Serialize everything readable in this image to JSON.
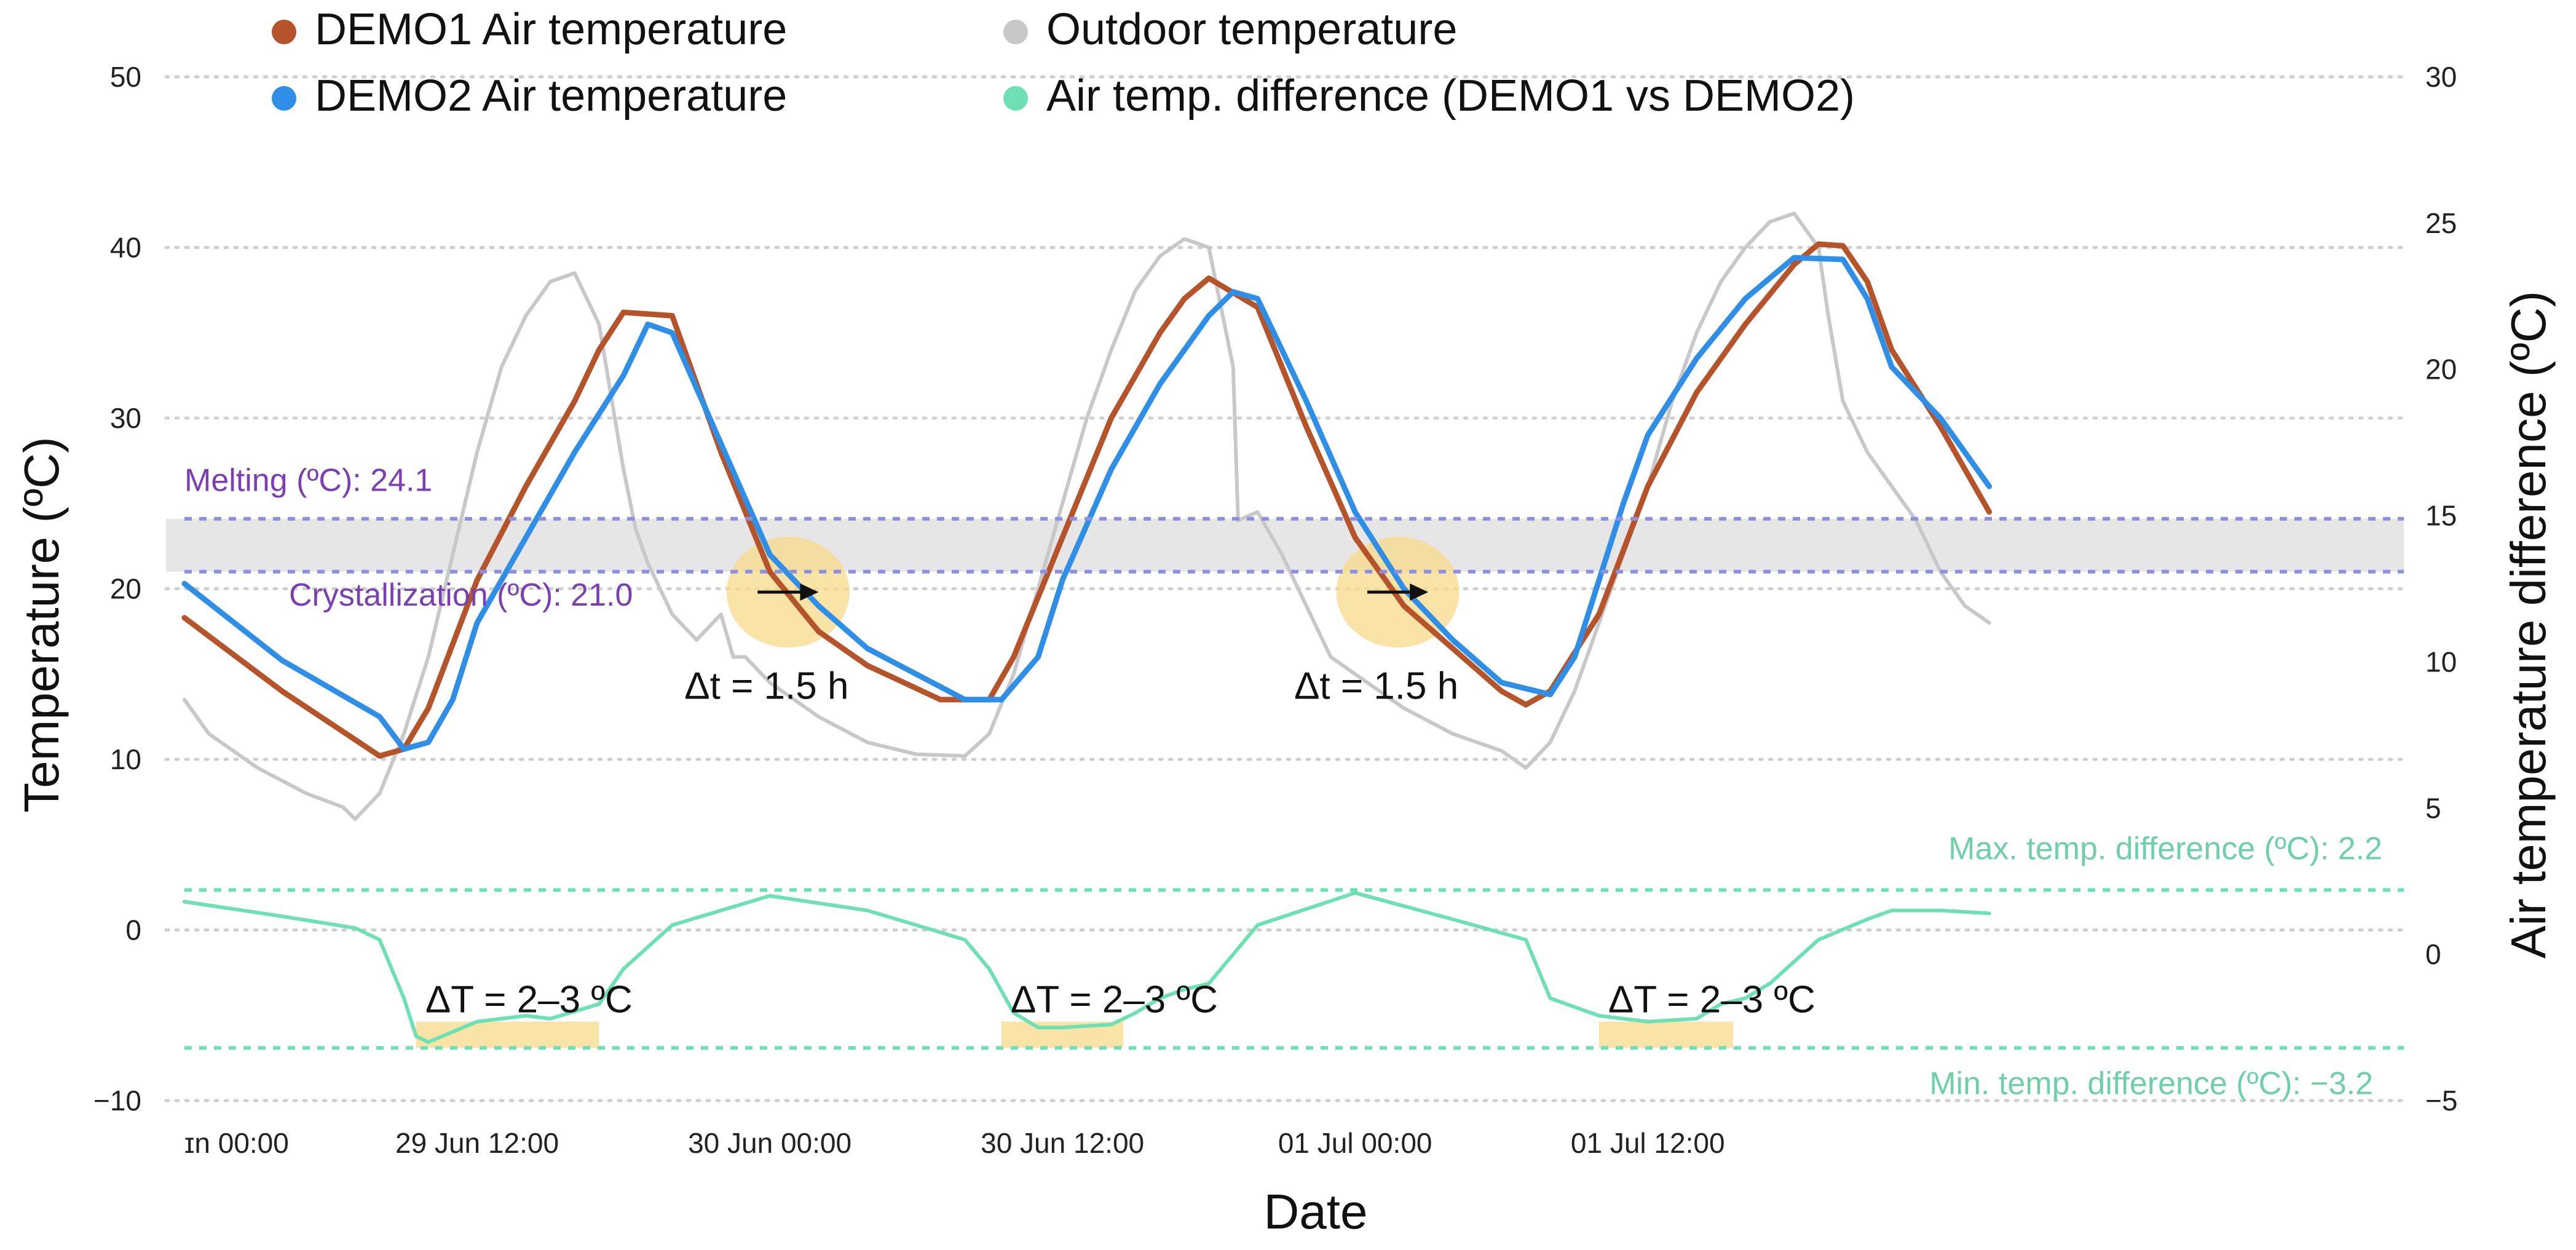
{
  "chart_data": {
    "type": "line",
    "xlabel": "Date",
    "ylabel": "Temperature (ºC)",
    "y2label": "Air temperature difference (ºC)",
    "x_unit": "hours since 29 Jun 00:00",
    "xlim": [
      0,
      91
    ],
    "ylim": [
      -10,
      50
    ],
    "y2lim": [
      -5,
      30
    ],
    "x_ticks": [
      {
        "x": 0,
        "label": "ɪn 00:00"
      },
      {
        "x": 12,
        "label": "29 Jun 12:00"
      },
      {
        "x": 24,
        "label": "30 Jun 00:00"
      },
      {
        "x": 36,
        "label": "30 Jun 12:00"
      },
      {
        "x": 48,
        "label": "01 Jul 00:00"
      },
      {
        "x": 60,
        "label": "01 Jul 12:00"
      }
    ],
    "y_ticks": [
      {
        "v": -10,
        "label": "−10"
      },
      {
        "v": 0,
        "label": "0"
      },
      {
        "v": 10,
        "label": "10"
      },
      {
        "v": 20,
        "label": "20"
      },
      {
        "v": 30,
        "label": "30"
      },
      {
        "v": 40,
        "label": "40"
      },
      {
        "v": 50,
        "label": "50"
      }
    ],
    "y2_ticks": [
      {
        "v": -5,
        "label": "−5"
      },
      {
        "v": 0,
        "label": "0"
      },
      {
        "v": 5,
        "label": "5"
      },
      {
        "v": 10,
        "label": "10"
      },
      {
        "v": 15,
        "label": "15"
      },
      {
        "v": 20,
        "label": "20"
      },
      {
        "v": 25,
        "label": "25"
      },
      {
        "v": 30,
        "label": "30"
      }
    ],
    "grid": true,
    "legend": [
      {
        "name": "DEMO1 Air temperature",
        "color": "#b5532a"
      },
      {
        "name": "DEMO2 Air temperature",
        "color": "#2f8ee6"
      },
      {
        "name": "Outdoor temperature",
        "color": "#c8c8c8"
      },
      {
        "name": "Air temp. difference (DEMO1 vs DEMO2)",
        "color": "#6ee0b4"
      }
    ],
    "series": [
      {
        "name": "Outdoor temperature",
        "axis": "left",
        "color": "#c8c8c8",
        "x": [
          0,
          1,
          3,
          5,
          6.5,
          7,
          8,
          9,
          10,
          11,
          12,
          13,
          14,
          15,
          16,
          17,
          18,
          18.5,
          19,
          20,
          21,
          22,
          22.5,
          23,
          24,
          26,
          28,
          30,
          32,
          33,
          34,
          35,
          36,
          37,
          38,
          39,
          40,
          41,
          42,
          43,
          43.2,
          44,
          45,
          46,
          47,
          48,
          50,
          52,
          54,
          55,
          56,
          57,
          58,
          59,
          60,
          61,
          62,
          63,
          64,
          65,
          66,
          67,
          67.4,
          68,
          69,
          70,
          71,
          72,
          73,
          74
        ],
        "y": [
          13.5,
          11.5,
          9.5,
          8,
          7.2,
          6.5,
          8,
          11.5,
          16,
          22,
          28,
          33,
          36,
          38,
          38.5,
          35.5,
          27,
          23.5,
          21.5,
          18.5,
          17,
          18.5,
          16,
          16,
          14.5,
          12.5,
          11,
          10.3,
          10.2,
          11.5,
          15,
          20,
          25,
          30,
          34,
          37.5,
          39.5,
          40.5,
          40,
          33,
          24,
          24.5,
          22,
          19,
          16,
          15,
          13,
          11.5,
          10.5,
          9.5,
          11,
          14,
          18,
          22,
          26,
          31,
          35,
          38,
          40,
          41.5,
          42,
          40,
          36,
          31,
          28,
          26,
          24,
          21,
          19,
          18
        ]
      },
      {
        "name": "DEMO1 Air temperature",
        "axis": "left",
        "color": "#b5532a",
        "x": [
          0,
          4,
          8,
          9,
          10,
          12,
          14,
          16,
          17,
          18,
          20,
          22,
          24,
          26,
          28,
          31,
          33,
          34,
          36,
          38,
          40,
          41,
          42,
          44,
          46,
          48,
          50,
          52,
          54,
          55,
          56,
          58,
          60,
          62,
          64,
          66,
          67,
          68,
          69,
          70,
          72,
          74
        ],
        "y": [
          18.3,
          14,
          10.2,
          10.6,
          13,
          20.5,
          26,
          31,
          34,
          36.2,
          36,
          28,
          21,
          17.5,
          15.5,
          13.5,
          13.5,
          16,
          23,
          30,
          35,
          37,
          38.2,
          36.5,
          29.5,
          23,
          19,
          16.5,
          14,
          13.2,
          14,
          18.5,
          26,
          31.5,
          35.5,
          39,
          40.2,
          40.1,
          38,
          34,
          29.5,
          24.5
        ]
      },
      {
        "name": "DEMO2 Air temperature",
        "axis": "left",
        "color": "#2f8ee6",
        "x": [
          0,
          4,
          8,
          9,
          10,
          11,
          12,
          14,
          16,
          18,
          19,
          20,
          22,
          24,
          26,
          28,
          30,
          32,
          33.5,
          35,
          36,
          38,
          40,
          42,
          43,
          44,
          46,
          48,
          50,
          52,
          54,
          56,
          57,
          58,
          59,
          60,
          62,
          64,
          66,
          68,
          69,
          70,
          72,
          74
        ],
        "y": [
          20.3,
          15.8,
          12.5,
          10.6,
          11,
          13.5,
          18,
          23,
          28,
          32.5,
          35.5,
          35,
          28.5,
          22,
          19,
          16.5,
          15,
          13.5,
          13.5,
          16,
          20.5,
          27,
          32,
          36,
          37.4,
          37,
          31,
          24.5,
          20,
          17,
          14.5,
          13.8,
          16,
          20.5,
          25,
          29,
          33.5,
          37,
          39.4,
          39.3,
          37,
          33,
          30,
          26
        ]
      },
      {
        "name": "Air temp. difference (DEMO1 vs DEMO2)",
        "axis": "right",
        "color": "#6ee0b4",
        "x": [
          0,
          4,
          7,
          8,
          9,
          9.5,
          10,
          12,
          14,
          15,
          17,
          18,
          20,
          24,
          28,
          32,
          33,
          34,
          35,
          36,
          38,
          39,
          40,
          41,
          42,
          44,
          48,
          52,
          55,
          56,
          57,
          58,
          60,
          62,
          63,
          64,
          65,
          67,
          69,
          70,
          72,
          74
        ],
        "y": [
          1.8,
          1.3,
          0.9,
          0.5,
          -1.5,
          -2.8,
          -3,
          -2.3,
          -2.1,
          -2.2,
          -1.7,
          -0.5,
          1.0,
          2.0,
          1.5,
          0.5,
          -0.5,
          -2.0,
          -2.5,
          -2.5,
          -2.4,
          -2.0,
          -1.5,
          -1.2,
          -1.0,
          1.0,
          2.1,
          1.2,
          0.5,
          -1.5,
          -1.8,
          -2.1,
          -2.3,
          -2.2,
          -1.7,
          -1.5,
          -1.0,
          0.5,
          1.2,
          1.5,
          1.5,
          1.4
        ]
      }
    ],
    "reference_lines": [
      {
        "label": "Melting (ºC): 24.1",
        "value": 24.1,
        "axis": "left",
        "color": "#8f8fe0",
        "label_color": "#7a3fb0"
      },
      {
        "label": "Crystallization (ºC): 21.0",
        "value": 21.0,
        "axis": "left",
        "color": "#8f8fe0",
        "label_color": "#7a3fb0"
      },
      {
        "label": "Max. temp. difference (ºC): 2.2",
        "value": 2.2,
        "axis": "right",
        "color": "#6ee0b4",
        "label_color": "#6fcfa8"
      },
      {
        "label": "Min. temp. difference (ºC): −3.2",
        "value": -3.2,
        "axis": "right",
        "color": "#6ee0b4",
        "label_color": "#6fcfa8"
      }
    ],
    "band": {
      "from": 21.0,
      "to": 24.1,
      "color": "#e6e6e6"
    },
    "annotations": [
      {
        "text": "Δt = 1.5 h",
        "x": 20.5,
        "y": 19.5,
        "arrow_from": 23.5,
        "arrow_to": 26.0
      },
      {
        "text": "Δt = 1.5 h",
        "x": 45.5,
        "y": 19.5,
        "arrow_from": 48.5,
        "arrow_to": 51.0
      },
      {
        "text": "ΔT = 2–3 ºC",
        "x": 9.5,
        "x_end": 17.0,
        "y_low": -3.2,
        "y_high": -2.3
      },
      {
        "text": "ΔT = 2–3 ºC",
        "x": 33.5,
        "x_end": 38.5,
        "y_low": -3.2,
        "y_high": -2.3
      },
      {
        "text": "ΔT = 2–3 ºC",
        "x": 58.0,
        "x_end": 63.5,
        "y_low": -3.2,
        "y_high": -2.3
      }
    ]
  }
}
